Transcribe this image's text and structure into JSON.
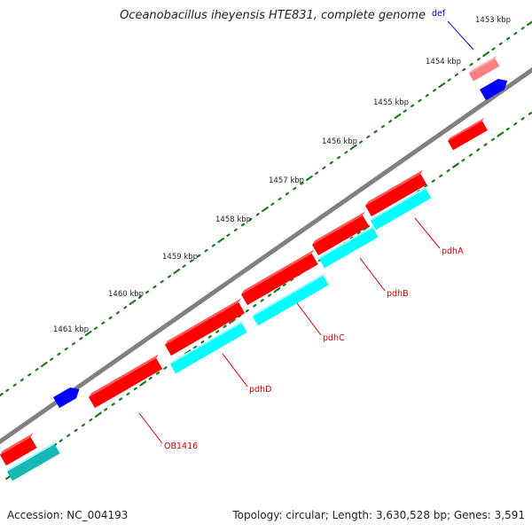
{
  "title": "Oceanobacillus iheyensis HTE831, complete genome",
  "footer": {
    "accession": "Accession: NC_004193",
    "summary": "Topology: circular; Length: 3,630,528 bp; Genes: 3,591"
  },
  "scale_labels": [
    {
      "label": "1453 kbp",
      "kbp": 1453
    },
    {
      "label": "1454 kbp",
      "kbp": 1454
    },
    {
      "label": "1455 kbp",
      "kbp": 1455
    },
    {
      "label": "1456 kbp",
      "kbp": 1456
    },
    {
      "label": "1457 kbp",
      "kbp": 1457
    },
    {
      "label": "1458 kbp",
      "kbp": 1458
    },
    {
      "label": "1459 kbp",
      "kbp": 1459
    },
    {
      "label": "1460 kbp",
      "kbp": 1460
    },
    {
      "label": "1461 kbp",
      "kbp": 1461
    }
  ],
  "gene_labels": [
    {
      "name": "def",
      "color": "#0000cc"
    },
    {
      "name": "pdhA",
      "color": "#cc0000"
    },
    {
      "name": "pdhB",
      "color": "#cc0000"
    },
    {
      "name": "pdhC",
      "color": "#cc0000"
    },
    {
      "name": "pdhD",
      "color": "#cc0000"
    },
    {
      "name": "OB1416",
      "color": "#cc0000"
    }
  ],
  "colors": {
    "backbone": "#808080",
    "cds": "#ff0000",
    "cds_highlight": "#ff8080",
    "gene_blue": "#0000ff",
    "operon": "#00ffff",
    "tick": "#1b7a1b",
    "label_red": "#cc0000",
    "label_blue": "#0000cc"
  }
}
